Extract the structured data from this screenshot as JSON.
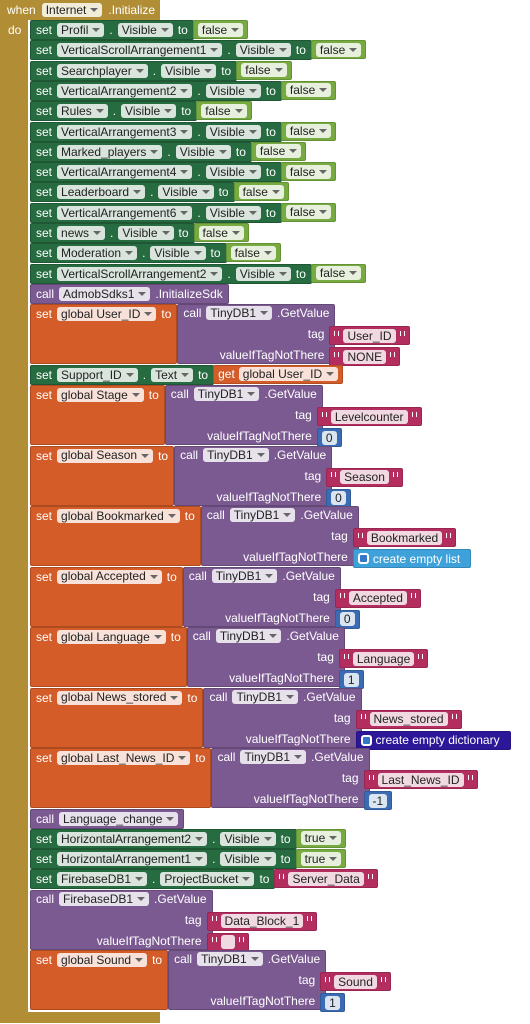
{
  "event": {
    "when": "when",
    "component": "Internet",
    "event": ".Initialize",
    "do": "do"
  },
  "statements": [
    {
      "kind": "set_property",
      "keyword": "set",
      "component": "Profil",
      "dot": ".",
      "property": "Visible",
      "to": "to",
      "value": {
        "type": "logic",
        "text": "false"
      }
    },
    {
      "kind": "set_property",
      "keyword": "set",
      "component": "VerticalScrollArrangement1",
      "dot": ".",
      "property": "Visible",
      "to": "to",
      "value": {
        "type": "logic",
        "text": "false"
      }
    },
    {
      "kind": "set_property",
      "keyword": "set",
      "component": "Searchplayer",
      "dot": ".",
      "property": "Visible",
      "to": "to",
      "value": {
        "type": "logic",
        "text": "false"
      }
    },
    {
      "kind": "set_property",
      "keyword": "set",
      "component": "VerticalArrangement2",
      "dot": ".",
      "property": "Visible",
      "to": "to",
      "value": {
        "type": "logic",
        "text": "false"
      }
    },
    {
      "kind": "set_property",
      "keyword": "set",
      "component": "Rules",
      "dot": ".",
      "property": "Visible",
      "to": "to",
      "value": {
        "type": "logic",
        "text": "false"
      }
    },
    {
      "kind": "set_property",
      "keyword": "set",
      "component": "VerticalArrangement3",
      "dot": ".",
      "property": "Visible",
      "to": "to",
      "value": {
        "type": "logic",
        "text": "false"
      }
    },
    {
      "kind": "set_property",
      "keyword": "set",
      "component": "Marked_players",
      "dot": ".",
      "property": "Visible",
      "to": "to",
      "value": {
        "type": "logic",
        "text": "false"
      }
    },
    {
      "kind": "set_property",
      "keyword": "set",
      "component": "VerticalArrangement4",
      "dot": ".",
      "property": "Visible",
      "to": "to",
      "value": {
        "type": "logic",
        "text": "false"
      }
    },
    {
      "kind": "set_property",
      "keyword": "set",
      "component": "Leaderboard",
      "dot": ".",
      "property": "Visible",
      "to": "to",
      "value": {
        "type": "logic",
        "text": "false"
      }
    },
    {
      "kind": "set_property",
      "keyword": "set",
      "component": "VerticalArrangement6",
      "dot": ".",
      "property": "Visible",
      "to": "to",
      "value": {
        "type": "logic",
        "text": "false"
      }
    },
    {
      "kind": "set_property",
      "keyword": "set",
      "component": "news",
      "dot": ".",
      "property": "Visible",
      "to": "to",
      "value": {
        "type": "logic",
        "text": "false"
      }
    },
    {
      "kind": "set_property",
      "keyword": "set",
      "component": "Moderation",
      "dot": ".",
      "property": "Visible",
      "to": "to",
      "value": {
        "type": "logic",
        "text": "false"
      }
    },
    {
      "kind": "set_property",
      "keyword": "set",
      "component": "VerticalScrollArrangement2",
      "dot": ".",
      "property": "Visible",
      "to": "to",
      "value": {
        "type": "logic",
        "text": "false"
      }
    },
    {
      "kind": "call",
      "keyword": "call",
      "component": "AdmobSdks1",
      "method": ".InitializeSdk"
    },
    {
      "kind": "set_global_call",
      "keyword": "set",
      "variable": "global User_ID",
      "to": "to",
      "call": {
        "keyword": "call",
        "component": "TinyDB1",
        "method": ".GetValue",
        "params": [
          {
            "name": "tag",
            "value": {
              "type": "text",
              "text": "User_ID"
            }
          },
          {
            "name": "valueIfTagNotThere",
            "value": {
              "type": "text",
              "text": "NONE"
            }
          }
        ]
      }
    },
    {
      "kind": "set_property",
      "keyword": "set",
      "component": "Support_ID",
      "dot": ".",
      "property": "Text",
      "to": "to",
      "value": {
        "type": "get",
        "keyword": "get",
        "text": "global User_ID"
      }
    },
    {
      "kind": "set_global_call",
      "keyword": "set",
      "variable": "global Stage",
      "to": "to",
      "call": {
        "keyword": "call",
        "component": "TinyDB1",
        "method": ".GetValue",
        "params": [
          {
            "name": "tag",
            "value": {
              "type": "text",
              "text": "Levelcounter"
            }
          },
          {
            "name": "valueIfTagNotThere",
            "value": {
              "type": "number",
              "text": 0
            }
          }
        ]
      }
    },
    {
      "kind": "set_global_call",
      "keyword": "set",
      "variable": "global Season",
      "to": "to",
      "call": {
        "keyword": "call",
        "component": "TinyDB1",
        "method": ".GetValue",
        "params": [
          {
            "name": "tag",
            "value": {
              "type": "text",
              "text": "Season"
            }
          },
          {
            "name": "valueIfTagNotThere",
            "value": {
              "type": "number",
              "text": 0
            }
          }
        ]
      }
    },
    {
      "kind": "set_global_call",
      "keyword": "set",
      "variable": "global Bookmarked",
      "to": "to",
      "call": {
        "keyword": "call",
        "component": "TinyDB1",
        "method": ".GetValue",
        "params": [
          {
            "name": "tag",
            "value": {
              "type": "text",
              "text": "Bookmarked"
            }
          },
          {
            "name": "valueIfTagNotThere",
            "value": {
              "type": "list",
              "text": "create empty list"
            }
          }
        ]
      }
    },
    {
      "kind": "set_global_call",
      "keyword": "set",
      "variable": "global Accepted",
      "to": "to",
      "call": {
        "keyword": "call",
        "component": "TinyDB1",
        "method": ".GetValue",
        "params": [
          {
            "name": "tag",
            "value": {
              "type": "text",
              "text": "Accepted"
            }
          },
          {
            "name": "valueIfTagNotThere",
            "value": {
              "type": "number",
              "text": 0
            }
          }
        ]
      }
    },
    {
      "kind": "set_global_call",
      "keyword": "set",
      "variable": "global Language",
      "to": "to",
      "call": {
        "keyword": "call",
        "component": "TinyDB1",
        "method": ".GetValue",
        "params": [
          {
            "name": "tag",
            "value": {
              "type": "text",
              "text": "Language"
            }
          },
          {
            "name": "valueIfTagNotThere",
            "value": {
              "type": "number",
              "text": 1
            }
          }
        ]
      }
    },
    {
      "kind": "set_global_call",
      "keyword": "set",
      "variable": "global News_stored",
      "to": "to",
      "call": {
        "keyword": "call",
        "component": "TinyDB1",
        "method": ".GetValue",
        "params": [
          {
            "name": "tag",
            "value": {
              "type": "text",
              "text": "News_stored"
            }
          },
          {
            "name": "valueIfTagNotThere",
            "value": {
              "type": "dict",
              "text": "create empty dictionary"
            }
          }
        ]
      }
    },
    {
      "kind": "set_global_call",
      "keyword": "set",
      "variable": "global Last_News_ID",
      "to": "to",
      "call": {
        "keyword": "call",
        "component": "TinyDB1",
        "method": ".GetValue",
        "params": [
          {
            "name": "tag",
            "value": {
              "type": "text",
              "text": "Last_News_ID"
            }
          },
          {
            "name": "valueIfTagNotThere",
            "value": {
              "type": "number",
              "text": -1
            }
          }
        ]
      }
    },
    {
      "kind": "call",
      "keyword": "call",
      "component": "Language_change"
    },
    {
      "kind": "set_property",
      "keyword": "set",
      "component": "HorizontalArrangement2",
      "dot": ".",
      "property": "Visible",
      "to": "to",
      "value": {
        "type": "logic",
        "text": "true"
      }
    },
    {
      "kind": "set_property",
      "keyword": "set",
      "component": "HorizontalArrangement1",
      "dot": ".",
      "property": "Visible",
      "to": "to",
      "value": {
        "type": "logic",
        "text": "true"
      }
    },
    {
      "kind": "set_property",
      "keyword": "set",
      "component": "FirebaseDB1",
      "dot": ".",
      "property": "ProjectBucket",
      "to": "to",
      "value": {
        "type": "text",
        "text": "Server_Data"
      }
    },
    {
      "kind": "call_params",
      "keyword": "call",
      "component": "FirebaseDB1",
      "method": ".GetValue",
      "params": [
        {
          "name": "tag",
          "value": {
            "type": "text",
            "text": "Data_Block_1"
          }
        },
        {
          "name": "valueIfTagNotThere",
          "value": {
            "type": "text"
          }
        }
      ]
    },
    {
      "kind": "set_global_call",
      "keyword": "set",
      "variable": "global Sound",
      "to": "to",
      "call": {
        "keyword": "call",
        "component": "TinyDB1",
        "method": ".GetValue",
        "params": [
          {
            "name": "tag",
            "value": {
              "type": "text",
              "text": "Sound"
            }
          },
          {
            "name": "valueIfTagNotThere",
            "value": {
              "type": "number",
              "text": 1
            }
          }
        ]
      }
    }
  ]
}
